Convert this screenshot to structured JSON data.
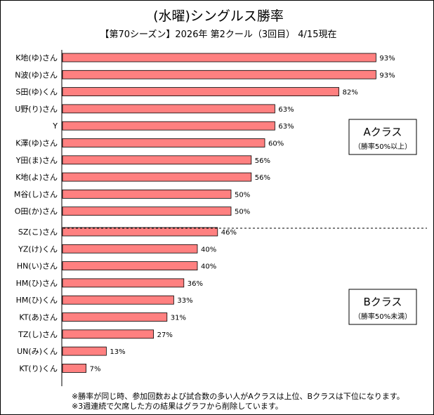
{
  "chart_data": {
    "type": "bar",
    "orientation": "horizontal",
    "title": "(水曜)シングルス勝率",
    "subtitle": "【第70シーズン】2026年 第2クール（3回目） 4/15現在",
    "categories": [
      "K地(ゆ)さん",
      "N波(ゆ)さん",
      "S田(ゆ)くん",
      "U野(り)さん",
      "Y",
      "K澤(ゆ)さん",
      "Y田(ま)さん",
      "K地(よ)さん",
      "M谷(し)さん",
      "O田(か)さん",
      "SZ(こ)さん",
      "YZ(け)くん",
      "HN(い)さん",
      "HM(ひ)さん",
      "HM(ひ)くん",
      "KT(あ)さん",
      "TZ(し)さん",
      "UN(み)くん",
      "KT(り)くん"
    ],
    "values": [
      93,
      93,
      82,
      63,
      63,
      60,
      56,
      56,
      50,
      50,
      46,
      40,
      40,
      36,
      33,
      31,
      27,
      13,
      7
    ],
    "value_labels": [
      "93%",
      "93%",
      "82%",
      "63%",
      "63%",
      "60%",
      "56%",
      "56%",
      "50%",
      "50%",
      "46%",
      "40%",
      "40%",
      "36%",
      "33%",
      "31%",
      "27%",
      "13%",
      "7%"
    ],
    "xlim": [
      0,
      100
    ],
    "bar_color": "#ff8080",
    "groups": [
      {
        "name": "Aクラス",
        "note": "（勝率50%以上）",
        "count": 10
      },
      {
        "name": "Bクラス",
        "note": "（勝率50%未満）",
        "count": 9
      }
    ]
  },
  "footnotes": [
    "※勝率が同じ時、参加回数および試合数の多い人がAクラスは上位、Bクラスは下位になります。",
    "※3週連続で欠席した方の結果はグラフから削除しています。"
  ]
}
